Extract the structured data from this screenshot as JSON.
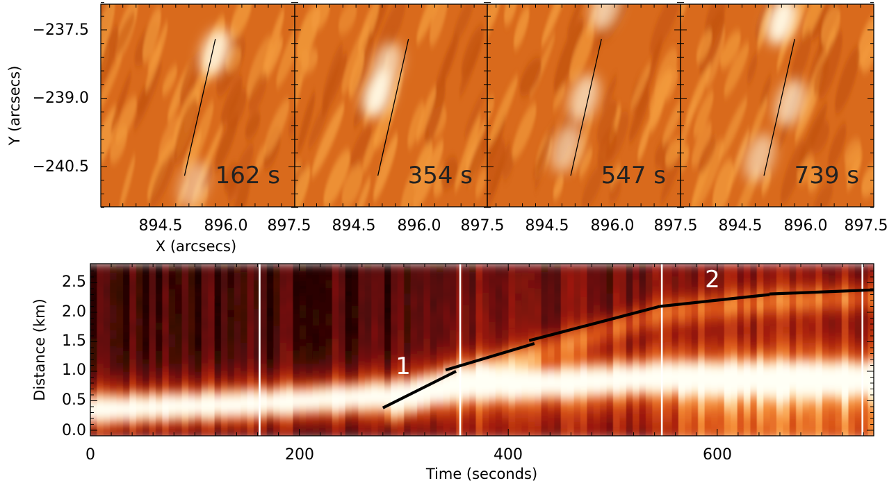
{
  "chart_data": [
    {
      "type": "heatmap",
      "xlabel": "X (arcsecs)",
      "ylabel": "Y (arcsecs)",
      "xlim": [
        893.2,
        897.6
      ],
      "ylim": [
        -241.6,
        -236.75
      ],
      "x_ticks": [
        "894.5",
        "896.0",
        "897.5"
      ],
      "y_ticks": [
        "−237.5",
        "−239.0",
        "−240.5"
      ],
      "y_tick_values": [
        -237.5,
        -239.0,
        -240.5
      ],
      "colormap": "red-orange-white",
      "panels": [
        {
          "time_label": "162 s",
          "slit": [
            [
              895.1,
              -240.7
            ],
            [
              895.8,
              -237.7
            ]
          ],
          "bright": [
            [
              895.8,
              -238.0,
              0.9
            ],
            [
              895.3,
              -240.9,
              0.5
            ]
          ]
        },
        {
          "time_label": "354 s",
          "slit": [
            [
              895.1,
              -240.7
            ],
            [
              895.8,
              -237.7
            ]
          ],
          "bright": [
            [
              895.1,
              -238.9,
              1.0
            ],
            [
              895.3,
              -238.3,
              0.7
            ]
          ]
        },
        {
          "time_label": "547 s",
          "slit": [
            [
              895.1,
              -240.7
            ],
            [
              895.8,
              -237.7
            ]
          ],
          "bright": [
            [
              895.4,
              -239.0,
              0.7
            ],
            [
              895.0,
              -240.1,
              0.6
            ],
            [
              895.9,
              -237.0,
              0.7
            ]
          ]
        },
        {
          "time_label": "739 s",
          "slit": [
            [
              895.1,
              -240.7
            ],
            [
              895.8,
              -237.7
            ]
          ],
          "bright": [
            [
              895.5,
              -237.3,
              1.0
            ],
            [
              895.7,
              -239.1,
              0.7
            ],
            [
              895.0,
              -240.3,
              0.6
            ]
          ]
        }
      ]
    },
    {
      "type": "heatmap",
      "xlabel": "Time (seconds)",
      "ylabel": "Distance (km)",
      "xlim": [
        0,
        750
      ],
      "ylim": [
        -0.05,
        2.75
      ],
      "x_ticks": [
        "0",
        "200",
        "400",
        "600"
      ],
      "x_tick_values": [
        0,
        200,
        400,
        600
      ],
      "y_ticks": [
        "0.0",
        "0.5",
        "1.0",
        "1.5",
        "2.0",
        "2.5"
      ],
      "y_tick_values": [
        0.0,
        0.5,
        1.0,
        1.5,
        2.0,
        2.5
      ],
      "time_markers": [
        162,
        354,
        547,
        739
      ],
      "ridge": [
        [
          0,
          0.35
        ],
        [
          150,
          0.45
        ],
        [
          300,
          0.6
        ],
        [
          350,
          0.75
        ],
        [
          450,
          0.8
        ],
        [
          550,
          0.9
        ],
        [
          750,
          0.9
        ]
      ],
      "fit_segments": [
        [
          [
            280,
            0.38
          ],
          [
            350,
            1.0
          ]
        ],
        [
          [
            340,
            1.02
          ],
          [
            425,
            1.47
          ]
        ],
        [
          [
            420,
            1.52
          ],
          [
            545,
            2.1
          ]
        ],
        [
          [
            545,
            2.1
          ],
          [
            650,
            2.3
          ]
        ],
        [
          [
            650,
            2.31
          ],
          [
            750,
            2.38
          ]
        ]
      ],
      "annotations": [
        {
          "text": "1",
          "x": 300,
          "y": 1.0
        },
        {
          "text": "2",
          "x": 595,
          "y": 2.48
        }
      ]
    }
  ]
}
